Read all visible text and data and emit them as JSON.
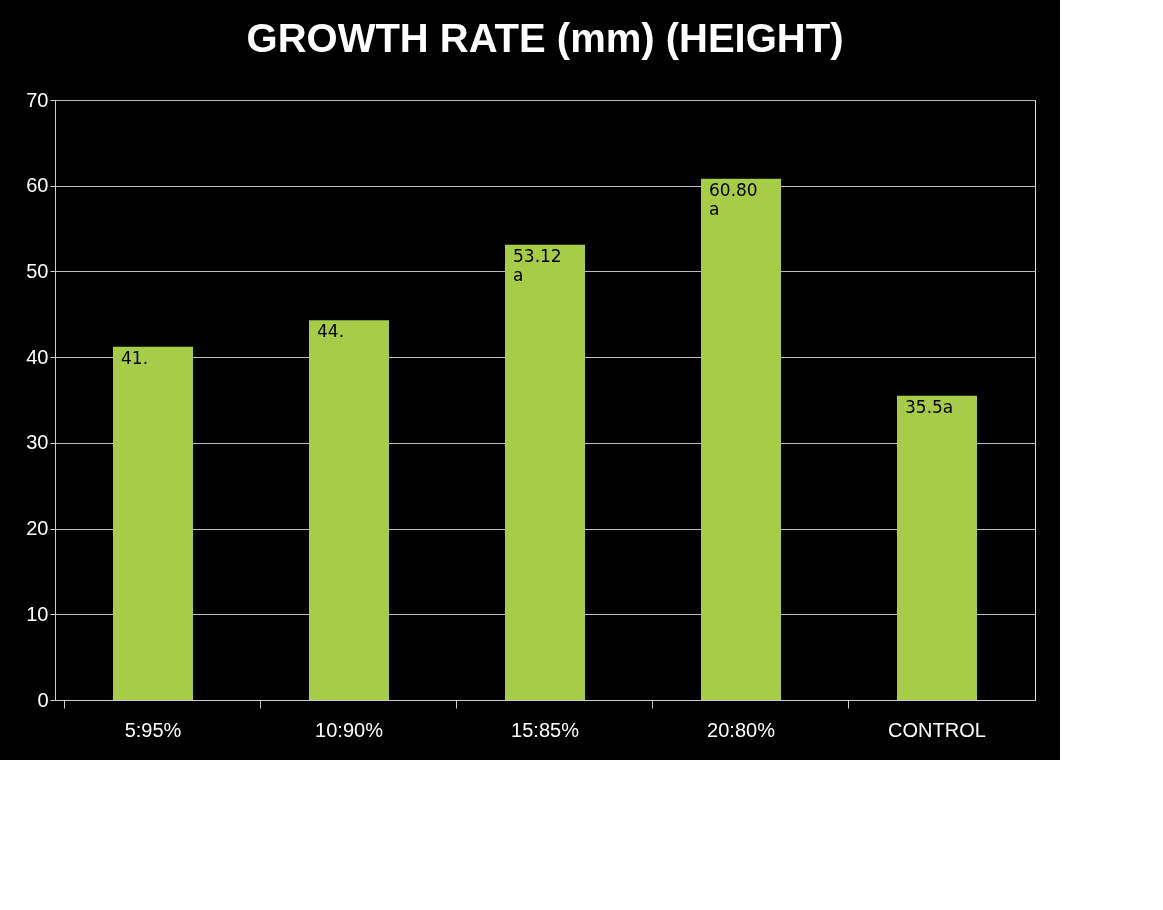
{
  "chart_data": {
    "type": "bar",
    "title": "GROWTH RATE (mm) (HEIGHT)",
    "categories": [
      "5:95%",
      "10:90%",
      "15:85%",
      "20:80%",
      "CONTROL"
    ],
    "values": [
      41.2,
      44.3,
      53.12,
      60.8,
      35.5
    ],
    "value_labels": [
      "41.",
      "44.",
      "53.12 a",
      "60.80 a",
      "35.5a"
    ],
    "color": "#a6cc48",
    "ylim": [
      0,
      70
    ],
    "yticks": [
      0,
      10,
      20,
      30,
      40,
      50,
      60,
      70
    ],
    "grid": "y"
  }
}
